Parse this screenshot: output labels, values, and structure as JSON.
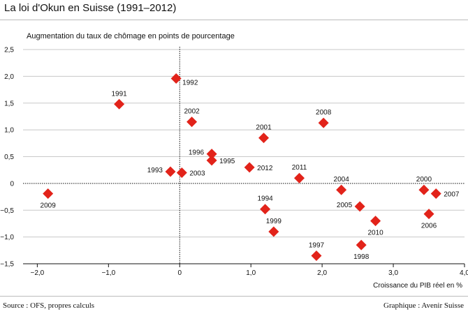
{
  "chart_data": {
    "type": "scatter",
    "title": "La loi d'Okun en Suisse (1991–2012)",
    "ylabel": "Augmentation du taux de chômage en points de pourcentage",
    "xlabel": "Croissance du PIB réel en %",
    "xlim": [
      -2.2,
      4.0
    ],
    "ylim": [
      -1.5,
      2.5
    ],
    "x_ticks": [
      {
        "value": -2.0,
        "label": "−2,0"
      },
      {
        "value": -1.0,
        "label": "−1,0"
      },
      {
        "value": 0,
        "label": "0"
      },
      {
        "value": 1.0,
        "label": "1,0"
      },
      {
        "value": 2.0,
        "label": "2,0"
      },
      {
        "value": 3.0,
        "label": "3,0"
      },
      {
        "value": 4.0,
        "label": "4,0"
      }
    ],
    "y_ticks": [
      {
        "value": 2.5,
        "label": "2,5"
      },
      {
        "value": 2.0,
        "label": "2,0"
      },
      {
        "value": 1.5,
        "label": "1,5"
      },
      {
        "value": 1.0,
        "label": "1,0"
      },
      {
        "value": 0.5,
        "label": "0,5"
      },
      {
        "value": 0,
        "label": "0"
      },
      {
        "value": -0.5,
        "label": "−0,5"
      },
      {
        "value": -1.0,
        "label": "−1,0"
      },
      {
        "value": -1.5,
        "label": "−1,5"
      }
    ],
    "grid": "horizontal",
    "marker_color": "#e2231a",
    "points": [
      {
        "year": "1991",
        "x": -0.85,
        "y": 1.48,
        "label_pos": "above"
      },
      {
        "year": "1992",
        "x": -0.05,
        "y": 1.96,
        "label_pos": "right-below"
      },
      {
        "year": "1993",
        "x": -0.13,
        "y": 0.22,
        "label_pos": "left"
      },
      {
        "year": "1994",
        "x": 1.2,
        "y": -0.48,
        "label_pos": "above"
      },
      {
        "year": "1995",
        "x": 0.45,
        "y": 0.43,
        "label_pos": "right"
      },
      {
        "year": "1996",
        "x": 0.45,
        "y": 0.55,
        "label_pos": "left"
      },
      {
        "year": "1997",
        "x": 1.92,
        "y": -1.35,
        "label_pos": "above"
      },
      {
        "year": "1998",
        "x": 2.55,
        "y": -1.15,
        "label_pos": "below"
      },
      {
        "year": "1999",
        "x": 1.32,
        "y": -0.9,
        "label_pos": "above"
      },
      {
        "year": "2000",
        "x": 3.43,
        "y": -0.12,
        "label_pos": "above"
      },
      {
        "year": "2001",
        "x": 1.18,
        "y": 0.85,
        "label_pos": "above"
      },
      {
        "year": "2002",
        "x": 0.17,
        "y": 1.15,
        "label_pos": "above"
      },
      {
        "year": "2003",
        "x": 0.03,
        "y": 0.2,
        "label_pos": "right"
      },
      {
        "year": "2004",
        "x": 2.27,
        "y": -0.12,
        "label_pos": "above"
      },
      {
        "year": "2005",
        "x": 2.53,
        "y": -0.43,
        "label_pos": "left"
      },
      {
        "year": "2006",
        "x": 3.5,
        "y": -0.57,
        "label_pos": "below"
      },
      {
        "year": "2007",
        "x": 3.6,
        "y": -0.19,
        "label_pos": "right"
      },
      {
        "year": "2008",
        "x": 2.02,
        "y": 1.13,
        "label_pos": "above"
      },
      {
        "year": "2009",
        "x": -1.85,
        "y": -0.19,
        "label_pos": "below"
      },
      {
        "year": "2010",
        "x": 2.75,
        "y": -0.7,
        "label_pos": "below"
      },
      {
        "year": "2011",
        "x": 1.68,
        "y": 0.1,
        "label_pos": "above"
      },
      {
        "year": "2012",
        "x": 0.98,
        "y": 0.3,
        "label_pos": "right"
      }
    ]
  },
  "footer": {
    "source": "Source : OFS, propres calculs",
    "credit": "Graphique : Avenir Suisse"
  }
}
